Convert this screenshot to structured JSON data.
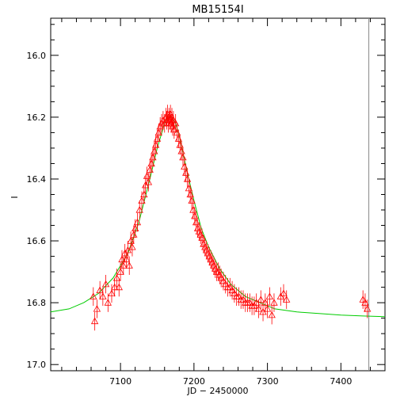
{
  "chart_data": {
    "type": "scatter",
    "title": "MB15154I",
    "xlabel": "JD − 2450000",
    "ylabel": "I",
    "xlim": [
      7005,
      7460
    ],
    "ylim": [
      17.02,
      15.88
    ],
    "y_inverted": true,
    "grid": false,
    "x_ticks": [
      "7100",
      "7200",
      "7300",
      "7400"
    ],
    "y_ticks": [
      "16.0",
      "16.2",
      "16.4",
      "16.6",
      "16.8",
      "17.0"
    ],
    "marker": "triangle",
    "reference_line_x": 7438,
    "series": [
      {
        "role": "observations",
        "color": "#ff0000",
        "error": 0.03,
        "x": [
          7063,
          7065,
          7068,
          7072,
          7076,
          7080,
          7083,
          7088,
          7092,
          7095,
          7098,
          7100,
          7102,
          7104,
          7106,
          7108,
          7110,
          7112,
          7114,
          7116,
          7118,
          7120,
          7123,
          7126,
          7129,
          7132,
          7134,
          7136,
          7138,
          7140,
          7142,
          7144,
          7146,
          7148,
          7150,
          7152,
          7154,
          7156,
          7158,
          7160,
          7162,
          7163,
          7164,
          7165,
          7166,
          7167,
          7168,
          7169,
          7170,
          7171,
          7172,
          7173,
          7175,
          7177,
          7179,
          7181,
          7183,
          7185,
          7187,
          7189,
          7191,
          7193,
          7195,
          7197,
          7199,
          7201,
          7203,
          7205,
          7207,
          7209,
          7211,
          7213,
          7215,
          7217,
          7219,
          7221,
          7223,
          7225,
          7227,
          7229,
          7231,
          7233,
          7235,
          7237,
          7240,
          7243,
          7246,
          7249,
          7252,
          7255,
          7258,
          7261,
          7264,
          7267,
          7270,
          7273,
          7276,
          7279,
          7282,
          7285,
          7288,
          7291,
          7294,
          7297,
          7300,
          7303,
          7306,
          7309,
          7318,
          7322,
          7326,
          7430,
          7433,
          7436
        ],
        "y": [
          16.78,
          16.86,
          16.82,
          16.76,
          16.78,
          16.74,
          16.8,
          16.77,
          16.75,
          16.72,
          16.75,
          16.7,
          16.66,
          16.68,
          16.64,
          16.66,
          16.63,
          16.68,
          16.6,
          16.62,
          16.58,
          16.56,
          16.54,
          16.5,
          16.47,
          16.45,
          16.42,
          16.39,
          16.41,
          16.37,
          16.35,
          16.33,
          16.31,
          16.29,
          16.27,
          16.25,
          16.23,
          16.22,
          16.21,
          16.22,
          16.2,
          16.21,
          16.19,
          16.22,
          16.2,
          16.21,
          16.19,
          16.22,
          16.2,
          16.23,
          16.21,
          16.24,
          16.22,
          16.25,
          16.27,
          16.29,
          16.31,
          16.33,
          16.36,
          16.38,
          16.4,
          16.43,
          16.45,
          16.47,
          16.5,
          16.52,
          16.54,
          16.56,
          16.57,
          16.58,
          16.59,
          16.61,
          16.62,
          16.63,
          16.64,
          16.65,
          16.66,
          16.67,
          16.68,
          16.69,
          16.7,
          16.7,
          16.71,
          16.72,
          16.73,
          16.74,
          16.75,
          16.75,
          16.76,
          16.77,
          16.78,
          16.78,
          16.79,
          16.79,
          16.8,
          16.8,
          16.8,
          16.81,
          16.81,
          16.8,
          16.82,
          16.79,
          16.83,
          16.8,
          16.82,
          16.78,
          16.84,
          16.8,
          16.78,
          16.77,
          16.79,
          16.79,
          16.8,
          16.82
        ]
      },
      {
        "role": "model",
        "color": "#00cc00",
        "x": [
          7005,
          7030,
          7050,
          7070,
          7090,
          7110,
          7125,
          7140,
          7150,
          7160,
          7165,
          7170,
          7175,
          7180,
          7190,
          7200,
          7210,
          7220,
          7235,
          7250,
          7270,
          7290,
          7310,
          7340,
          7370,
          7400,
          7430,
          7460
        ],
        "y": [
          16.83,
          16.82,
          16.8,
          16.77,
          16.72,
          16.64,
          16.54,
          16.4,
          16.3,
          16.22,
          16.2,
          16.2,
          16.22,
          16.26,
          16.37,
          16.47,
          16.56,
          16.62,
          16.69,
          16.74,
          16.78,
          16.8,
          16.82,
          16.83,
          16.835,
          16.84,
          16.843,
          16.845
        ]
      }
    ]
  }
}
